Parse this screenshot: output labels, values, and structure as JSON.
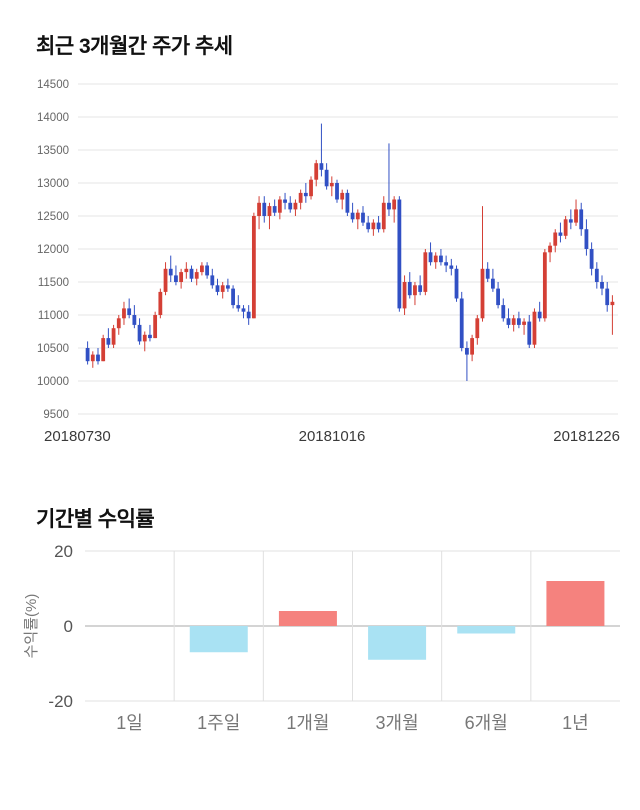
{
  "chart_data": [
    {
      "type": "candlestick",
      "title": "최근 3개월간 주가 추세",
      "ylim": [
        9500,
        14500
      ],
      "ytick_step": 500,
      "x_ticks": [
        "20180730",
        "20181016",
        "20181226"
      ],
      "up_color": "#d43f35",
      "down_color": "#3150c4",
      "grid_color": "#e6e6e6",
      "tick_color": "#666666",
      "candles": [
        [
          10500,
          10600,
          10250,
          10300
        ],
        [
          10300,
          10450,
          10200,
          10400
        ],
        [
          10400,
          10500,
          10250,
          10300
        ],
        [
          10300,
          10700,
          10300,
          10650
        ],
        [
          10650,
          10800,
          10500,
          10550
        ],
        [
          10550,
          10850,
          10500,
          10800
        ],
        [
          10800,
          11000,
          10700,
          10950
        ],
        [
          10950,
          11200,
          10850,
          11100
        ],
        [
          11100,
          11250,
          10950,
          11000
        ],
        [
          11000,
          11150,
          10800,
          10850
        ],
        [
          10850,
          10950,
          10550,
          10600
        ],
        [
          10600,
          10750,
          10450,
          10700
        ],
        [
          10700,
          10850,
          10600,
          10650
        ],
        [
          10650,
          11050,
          10650,
          11000
        ],
        [
          11000,
          11400,
          10950,
          11350
        ],
        [
          11350,
          11800,
          11300,
          11700
        ],
        [
          11700,
          11900,
          11500,
          11600
        ],
        [
          11600,
          11750,
          11450,
          11500
        ],
        [
          11500,
          11700,
          11400,
          11650
        ],
        [
          11650,
          11800,
          11550,
          11700
        ],
        [
          11700,
          11750,
          11500,
          11550
        ],
        [
          11550,
          11700,
          11450,
          11650
        ],
        [
          11650,
          11800,
          11600,
          11750
        ],
        [
          11750,
          11800,
          11550,
          11600
        ],
        [
          11600,
          11700,
          11400,
          11450
        ],
        [
          11450,
          11550,
          11300,
          11350
        ],
        [
          11350,
          11500,
          11250,
          11450
        ],
        [
          11450,
          11550,
          11350,
          11400
        ],
        [
          11400,
          11450,
          11100,
          11150
        ],
        [
          11150,
          11300,
          11050,
          11100
        ],
        [
          11100,
          11150,
          10950,
          11050
        ],
        [
          11050,
          11150,
          10850,
          10950
        ],
        [
          10950,
          12550,
          10950,
          12500
        ],
        [
          12500,
          12800,
          12300,
          12700
        ],
        [
          12700,
          12800,
          12400,
          12500
        ],
        [
          12500,
          12700,
          12300,
          12650
        ],
        [
          12650,
          12750,
          12500,
          12550
        ],
        [
          12550,
          12800,
          12450,
          12750
        ],
        [
          12750,
          12850,
          12600,
          12700
        ],
        [
          12700,
          12800,
          12550,
          12600
        ],
        [
          12600,
          12750,
          12500,
          12700
        ],
        [
          12700,
          12900,
          12600,
          12850
        ],
        [
          12850,
          13000,
          12700,
          12800
        ],
        [
          12800,
          13100,
          12750,
          13050
        ],
        [
          13050,
          13350,
          12950,
          13300
        ],
        [
          13300,
          13900,
          13100,
          13200
        ],
        [
          13200,
          13300,
          12900,
          12950
        ],
        [
          12950,
          13100,
          12800,
          13000
        ],
        [
          13000,
          13050,
          12700,
          12750
        ],
        [
          12750,
          12900,
          12600,
          12850
        ],
        [
          12850,
          12900,
          12500,
          12550
        ],
        [
          12550,
          12700,
          12400,
          12450
        ],
        [
          12450,
          12600,
          12300,
          12550
        ],
        [
          12550,
          12650,
          12350,
          12400
        ],
        [
          12400,
          12500,
          12250,
          12300
        ],
        [
          12300,
          12450,
          12200,
          12400
        ],
        [
          12400,
          12500,
          12250,
          12300
        ],
        [
          12300,
          12800,
          12250,
          12700
        ],
        [
          12700,
          13600,
          12500,
          12600
        ],
        [
          12600,
          12800,
          12400,
          12750
        ],
        [
          12750,
          12800,
          11050,
          11100
        ],
        [
          11100,
          11600,
          11000,
          11500
        ],
        [
          11500,
          11650,
          11250,
          11300
        ],
        [
          11300,
          11500,
          11150,
          11450
        ],
        [
          11450,
          11600,
          11300,
          11350
        ],
        [
          11350,
          12000,
          11300,
          11950
        ],
        [
          11950,
          12100,
          11750,
          11800
        ],
        [
          11800,
          11950,
          11700,
          11900
        ],
        [
          11900,
          12000,
          11750,
          11800
        ],
        [
          11800,
          11900,
          11650,
          11750
        ],
        [
          11750,
          11850,
          11600,
          11700
        ],
        [
          11700,
          11750,
          11200,
          11250
        ],
        [
          11250,
          11350,
          10450,
          10500
        ],
        [
          10500,
          10600,
          10000,
          10400
        ],
        [
          10400,
          10700,
          10300,
          10650
        ],
        [
          10650,
          11000,
          10550,
          10950
        ],
        [
          10950,
          12650,
          10900,
          11700
        ],
        [
          11700,
          11800,
          11500,
          11550
        ],
        [
          11550,
          11700,
          11350,
          11400
        ],
        [
          11400,
          11500,
          11100,
          11150
        ],
        [
          11150,
          11250,
          10900,
          10950
        ],
        [
          10950,
          11100,
          10800,
          10850
        ],
        [
          10850,
          11000,
          10750,
          10950
        ],
        [
          10950,
          11050,
          10800,
          10850
        ],
        [
          10850,
          10950,
          10700,
          10900
        ],
        [
          10900,
          11000,
          10500,
          10550
        ],
        [
          10550,
          11100,
          10500,
          11050
        ],
        [
          11050,
          11200,
          10900,
          10950
        ],
        [
          10950,
          12000,
          10900,
          11950
        ],
        [
          11950,
          12100,
          11800,
          12050
        ],
        [
          12050,
          12300,
          11950,
          12250
        ],
        [
          12250,
          12400,
          12100,
          12200
        ],
        [
          12200,
          12500,
          12150,
          12450
        ],
        [
          12450,
          12600,
          12300,
          12400
        ],
        [
          12400,
          12750,
          12350,
          12600
        ],
        [
          12600,
          12700,
          12200,
          12300
        ],
        [
          12300,
          12450,
          11900,
          12000
        ],
        [
          12000,
          12100,
          11600,
          11700
        ],
        [
          11700,
          11800,
          11400,
          11500
        ],
        [
          11500,
          11600,
          11300,
          11400
        ],
        [
          11400,
          11500,
          11050,
          11150
        ],
        [
          11150,
          11300,
          10700,
          11200
        ]
      ]
    },
    {
      "type": "bar",
      "title": "기간별 수익률",
      "ylabel": "수익률(%)",
      "ylim": [
        -20,
        20
      ],
      "yticks": [
        20,
        0,
        -20
      ],
      "categories": [
        "1일",
        "1주일",
        "1개월",
        "3개월",
        "6개월",
        "1년"
      ],
      "values": [
        0,
        -7,
        4,
        -9,
        -2,
        12
      ],
      "positive_color": "#f5827e",
      "negative_color": "#a9e2f3",
      "zero_line_color": "#aaaaaa",
      "grid_color": "#e0e0e0",
      "label_color": "#777777"
    }
  ]
}
